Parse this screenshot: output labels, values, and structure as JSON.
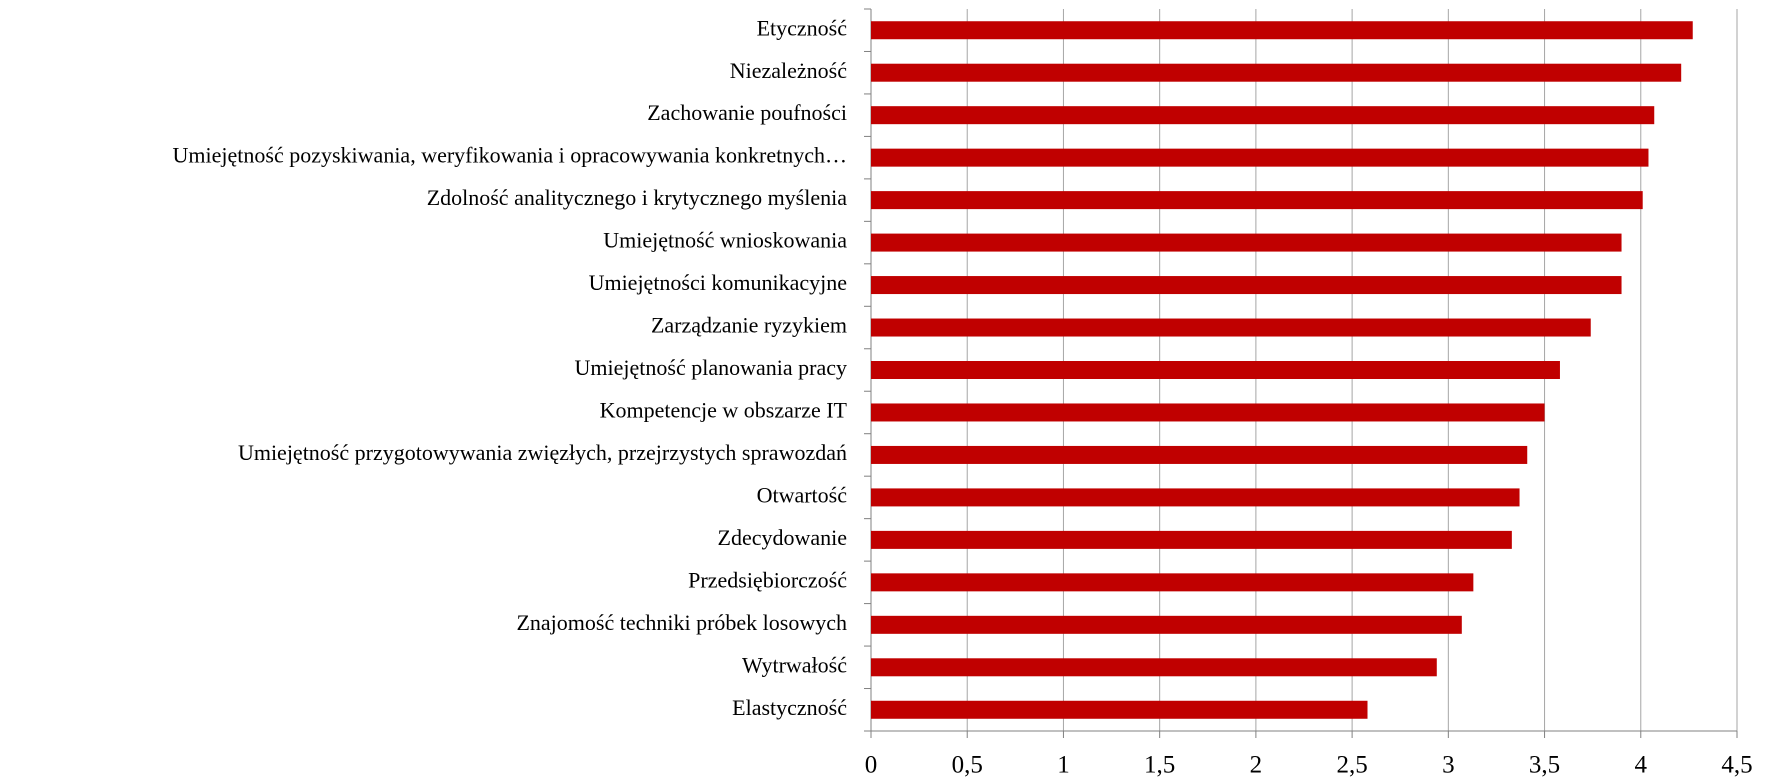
{
  "chart_data": {
    "type": "barh",
    "categories": [
      "Etyczność",
      "Niezależność",
      "Zachowanie poufności",
      "Umiejętność pozyskiwania, weryfikowania i opracowywania konkretnych…",
      "Zdolność analitycznego i krytycznego myślenia",
      "Umiejętność wnioskowania",
      "Umiejętności komunikacyjne",
      "Zarządzanie ryzykiem",
      "Umiejętność planowania pracy",
      "Kompetencje w obszarze IT",
      "Umiejętność przygotowywania zwięzłych, przejrzystych sprawozdań",
      "Otwartość",
      "Zdecydowanie",
      "Przedsiębiorczość",
      "Znajomość techniki próbek losowych",
      "Wytrwałość",
      "Elastyczność"
    ],
    "values": [
      4.27,
      4.21,
      4.07,
      4.04,
      4.01,
      3.9,
      3.9,
      3.74,
      3.58,
      3.5,
      3.41,
      3.37,
      3.33,
      3.13,
      3.07,
      2.94,
      2.58
    ],
    "color": "#c00000",
    "xlim": [
      0,
      4.5
    ],
    "xticks": [
      0,
      {
        "value": 0.5,
        "label": "0,5"
      },
      1,
      {
        "value": 1.5,
        "label": "1,5"
      },
      2,
      {
        "value": 2.5,
        "label": "2,5"
      },
      3,
      {
        "value": 3.5,
        "label": "3,5"
      },
      4,
      {
        "value": 4.5,
        "label": "4,5"
      }
    ],
    "grid": true
  }
}
